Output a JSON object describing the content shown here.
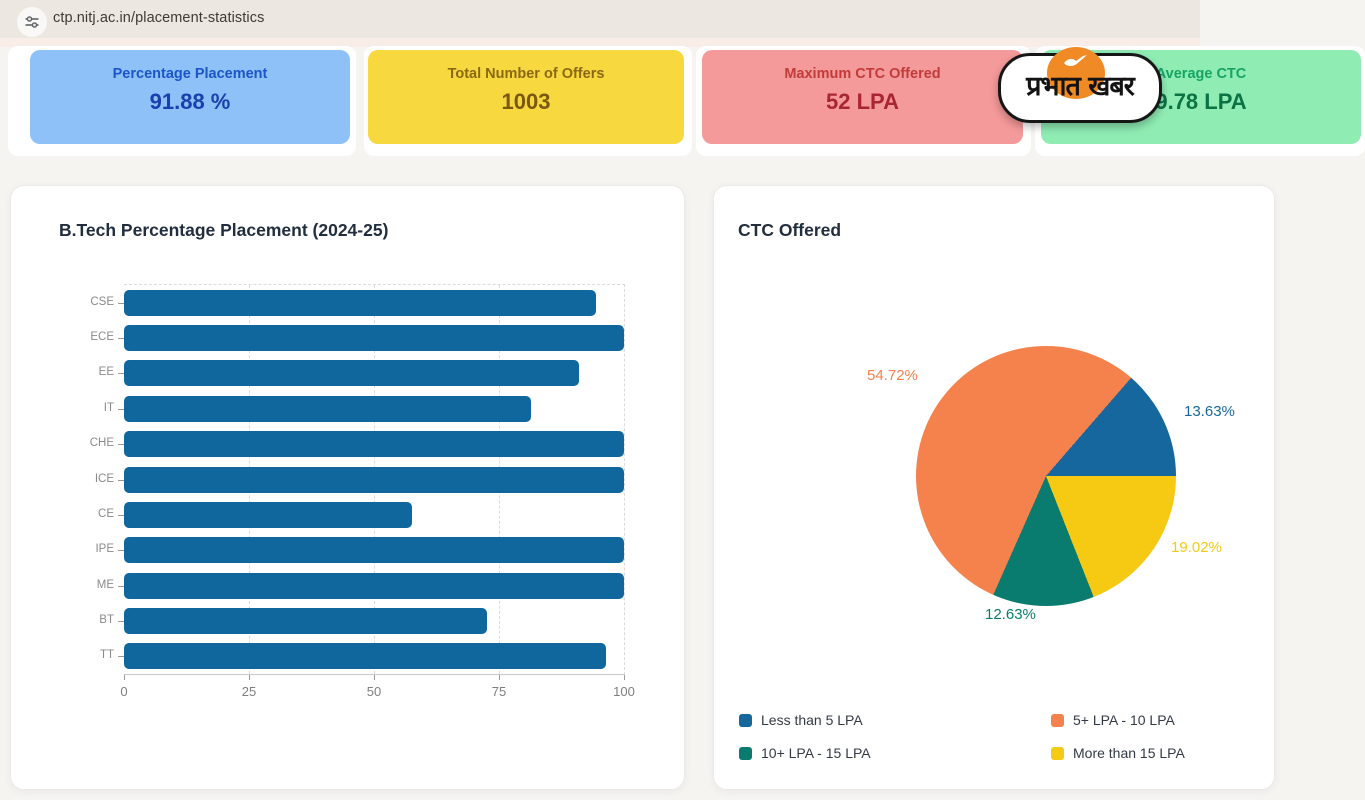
{
  "browser": {
    "url": "ctp.nitj.ac.in/placement-statistics"
  },
  "watermark": {
    "text": "प्रभात खबर"
  },
  "stat_cards": [
    {
      "label": "Percentage Placement",
      "value": "91.88 %",
      "bg": "#8DC1F7",
      "label_color": "#1B55C9",
      "value_color": "#1A3FAE"
    },
    {
      "label": "Total Number of Offers",
      "value": "1003",
      "bg": "#F7D83E",
      "label_color": "#8B6914",
      "value_color": "#7A5810"
    },
    {
      "label": "Maximum CTC Offered",
      "value": "52 LPA",
      "bg": "#F59A9A",
      "label_color": "#C23B3B",
      "value_color": "#A82633"
    },
    {
      "label": "Average CTC",
      "value": "9.78 LPA",
      "bg": "#8FEDB4",
      "label_color": "#16A464",
      "value_color": "#0B7243"
    }
  ],
  "chart_data": [
    {
      "type": "bar",
      "orientation": "horizontal",
      "title": "B.Tech Percentage Placement (2024-25)",
      "categories": [
        "CSE",
        "ECE",
        "EE",
        "IT",
        "CHE",
        "ICE",
        "CE",
        "IPE",
        "ME",
        "BT",
        "TT"
      ],
      "values": [
        94.4,
        100,
        91,
        81.3,
        100,
        100,
        57.6,
        100,
        100,
        72.6,
        96.4
      ],
      "xlabel": "",
      "ylabel": "",
      "xlim": [
        0,
        100
      ],
      "xticks": [
        0,
        25,
        50,
        75,
        100
      ],
      "bar_color": "#10679E",
      "grid": "dashed"
    },
    {
      "type": "pie",
      "title": "CTC Offered",
      "legend_position": "bottom",
      "slices": [
        {
          "label": "Less than 5 LPA",
          "value": 13.63,
          "value_label": "13.63%",
          "color": "#15679E"
        },
        {
          "label": "5+ LPA - 10 LPA",
          "value": 54.72,
          "value_label": "54.72%",
          "color": "#F5824D"
        },
        {
          "label": "10+ LPA - 15 LPA",
          "value": 12.63,
          "value_label": "12.63%",
          "color": "#0A7C6F"
        },
        {
          "label": "More than 15 LPA",
          "value": 19.02,
          "value_label": "19.02%",
          "color": "#F6C913"
        }
      ]
    }
  ]
}
